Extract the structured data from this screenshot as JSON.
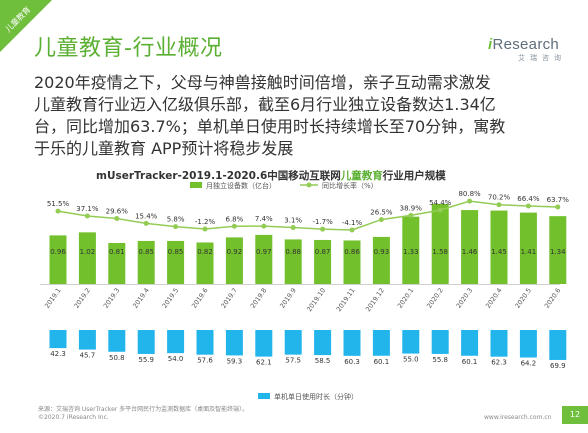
{
  "corner_tag": "儿童教育",
  "header": {
    "title": "儿童教育-行业概况",
    "logo_i": "i",
    "logo_rest": "Research",
    "logo_sub": "艾瑞咨询"
  },
  "lead": {
    "lines": [
      "2020年疫情之下，父母与神兽接触时间倍增，亲子互动需求激发",
      "儿童教育行业迈入亿级俱乐部，截至6月行业独立设备数达1.34亿",
      "台，同比增加63.7%；单机单日使用时长持续增长至70分钟，寓教",
      "于乐的儿童教育 APP预计将稳步发展"
    ]
  },
  "chart_title": {
    "prefix": "mUserTracker-2019.1-2020.6中国移动互联网",
    "highlight": "儿童教育",
    "suffix": "行业用户规模"
  },
  "colors": {
    "accent_green": "#6fbe3c",
    "bar_green": "#72c02c",
    "line_green": "#93cc55",
    "bar_blue": "#22b5ec",
    "text": "#333333"
  },
  "chart_data": {
    "type": "bar",
    "categories": [
      "2019.1",
      "2019.2",
      "2019.3",
      "2019.4",
      "2019.5",
      "2019.6",
      "2019.7",
      "2019.8",
      "2019.9",
      "2019.10",
      "2019.11",
      "2019.12",
      "2020.1",
      "2020.2",
      "2020.3",
      "2020.4",
      "2020.5",
      "2020.6"
    ],
    "series": [
      {
        "name": "月独立设备数（亿台）",
        "type": "bar",
        "values": [
          0.96,
          1.02,
          0.81,
          0.85,
          0.85,
          0.82,
          0.92,
          0.97,
          0.88,
          0.87,
          0.86,
          0.93,
          1.33,
          1.58,
          1.46,
          1.45,
          1.41,
          1.34
        ],
        "labels": [
          "0.96",
          "1.02",
          "0.81",
          "0.85",
          "0.85",
          "0.82",
          "0.92",
          "0.97",
          "0.88",
          "0.87",
          "0.86",
          "0.93",
          "1.33",
          "1.58",
          "1.46",
          "1.45",
          "1.41",
          "1.34"
        ]
      },
      {
        "name": "同比增长率（%）",
        "type": "line",
        "values": [
          51.5,
          37.1,
          29.6,
          15.4,
          5.8,
          -1.2,
          6.8,
          7.4,
          3.1,
          -1.7,
          -4.1,
          26.5,
          38.9,
          54.4,
          80.8,
          70.2,
          66.4,
          63.7
        ],
        "labels": [
          "51.5%",
          "37.1%",
          "29.6%",
          "15.4%",
          "5.8%",
          "-1.2%",
          "6.8%",
          "7.4%",
          "3.1%",
          "-1.7%",
          "-4.1%",
          "26.5%",
          "38.9%",
          "54.4%",
          "80.8%",
          "70.2%",
          "66.4%",
          "63.7%"
        ]
      },
      {
        "name": "单机单日使用时长（分钟）",
        "type": "bar",
        "direction": "down",
        "values": [
          42.3,
          45.7,
          50.8,
          55.9,
          54.0,
          57.6,
          59.3,
          62.1,
          57.5,
          58.5,
          60.3,
          60.1,
          55.0,
          55.8,
          60.1,
          62.3,
          64.2,
          69.9
        ],
        "labels": [
          "42.3",
          "45.7",
          "50.8",
          "55.9",
          "54.0",
          "57.6",
          "59.3",
          "62.1",
          "57.5",
          "58.5",
          "60.3",
          "60.1",
          "55.0",
          "55.8",
          "60.1",
          "62.3",
          "64.2",
          "69.9"
        ]
      }
    ],
    "legend_placement": "top-center"
  },
  "footer": {
    "source": "来源：艾瑞咨询 UserTracker 多平台网民行为监测数据库（桌面及智能终端）。",
    "copyright": "©2020.7 iResearch Inc.",
    "url": "www.iresearch.com.cn",
    "page": "12"
  }
}
